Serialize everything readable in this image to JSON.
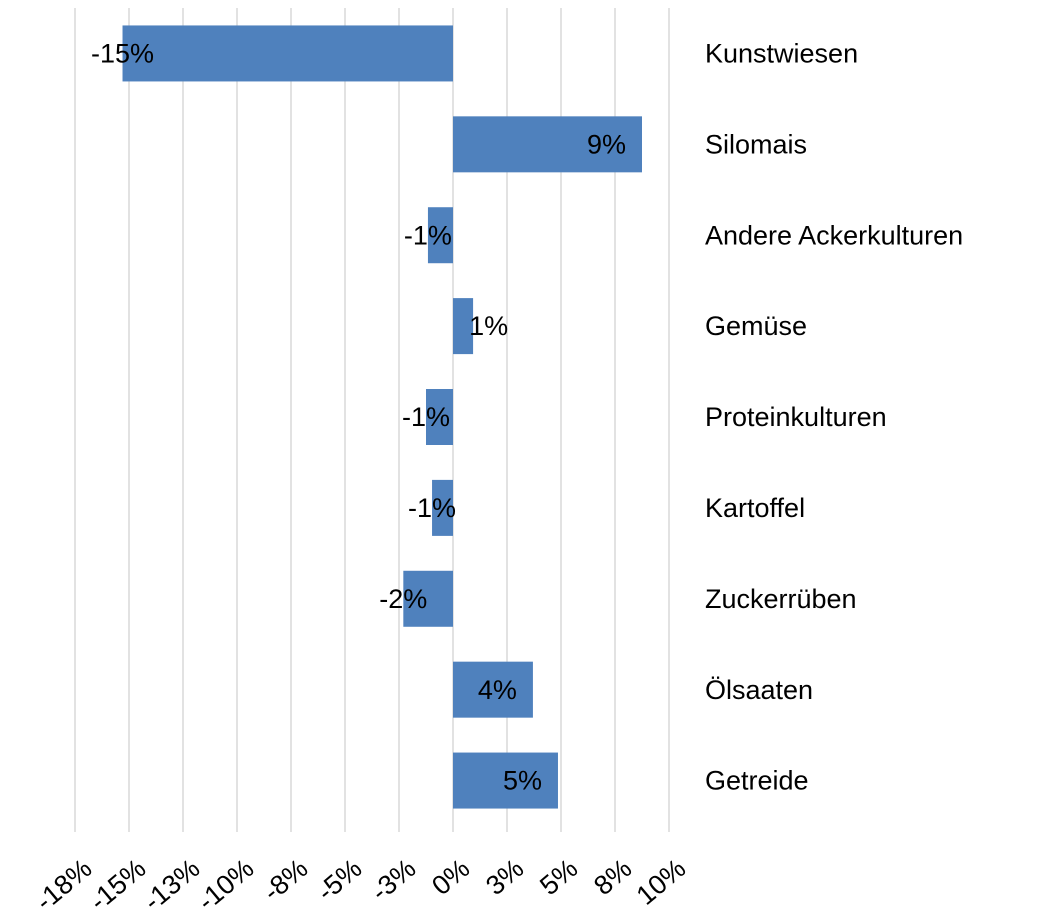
{
  "chart_data": {
    "type": "barh",
    "categories": [
      "Kunstwiesen",
      "Silomais",
      "Andere Ackerkulturen",
      "Gemüse",
      "Proteinkulturen",
      "Kartoffel",
      "Zuckerrüben",
      "Ölsaaten",
      "Getreide"
    ],
    "values": [
      -15.3,
      8.75,
      -1.16,
      0.93,
      -1.25,
      -0.97,
      -2.3,
      3.7,
      4.86
    ],
    "value_labels": [
      "-15%",
      "9%",
      "-1%",
      "1%",
      "-1%",
      "-1%",
      "-2%",
      "4%",
      "5%"
    ],
    "color": "#4f81bd",
    "xlim": [
      -17.5,
      10
    ],
    "xticks": [
      {
        "value": -17.5,
        "label": "-18%"
      },
      {
        "value": -15,
        "label": "-15%"
      },
      {
        "value": -12.5,
        "label": "-13%"
      },
      {
        "value": -10,
        "label": "-10%"
      },
      {
        "value": -7.5,
        "label": "-8%"
      },
      {
        "value": -5,
        "label": "-5%"
      },
      {
        "value": -2.5,
        "label": "-3%"
      },
      {
        "value": 0,
        "label": "0%"
      },
      {
        "value": 2.5,
        "label": "3%"
      },
      {
        "value": 5,
        "label": "5%"
      },
      {
        "value": 7.5,
        "label": "8%"
      },
      {
        "value": 10,
        "label": "10%"
      }
    ],
    "grid": true
  }
}
